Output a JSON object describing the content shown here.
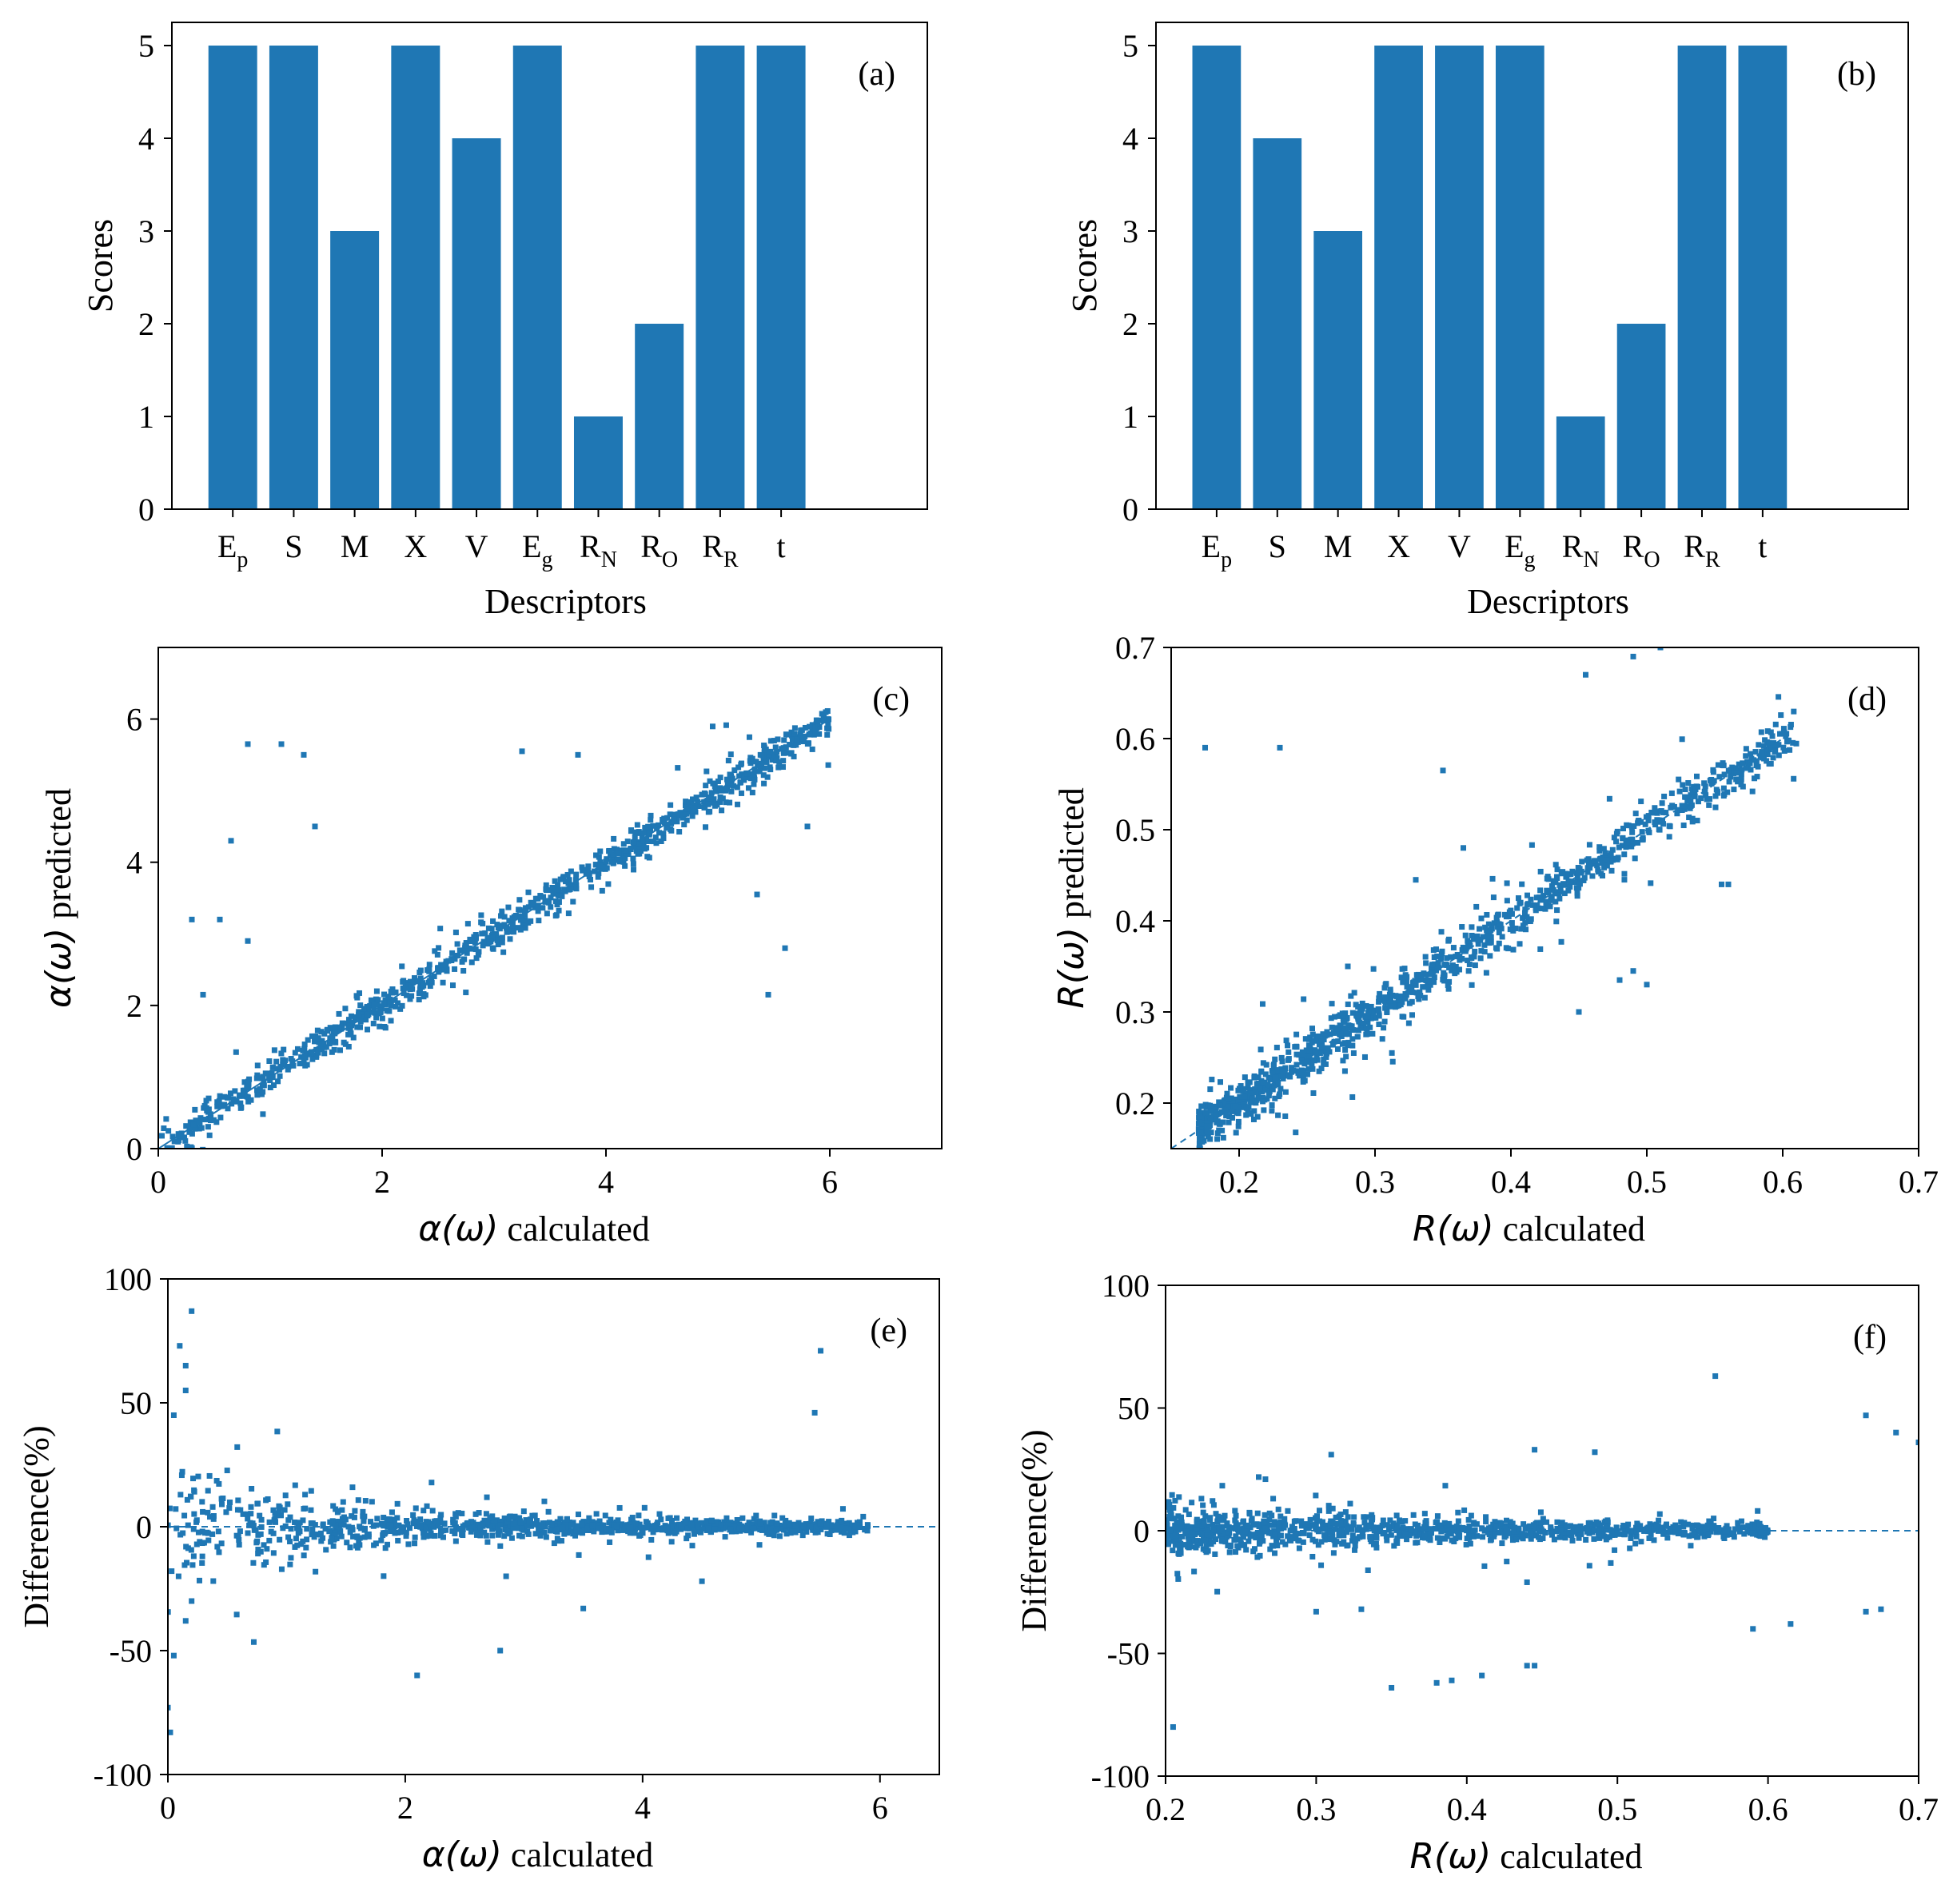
{
  "chart_data": [
    {
      "id": "a",
      "type": "bar",
      "panel_label": "(a)",
      "categories": [
        {
          "main": "E",
          "sub": "p"
        },
        {
          "main": "S",
          "sub": ""
        },
        {
          "main": "M",
          "sub": ""
        },
        {
          "main": "X",
          "sub": ""
        },
        {
          "main": "V",
          "sub": ""
        },
        {
          "main": "E",
          "sub": "g"
        },
        {
          "main": "R",
          "sub": "N"
        },
        {
          "main": "R",
          "sub": "O"
        },
        {
          "main": "R",
          "sub": "R"
        },
        {
          "main": "t",
          "sub": ""
        }
      ],
      "values": [
        5,
        5,
        3,
        5,
        4,
        5,
        1,
        2,
        5,
        5
      ],
      "xlabel": "Descriptors",
      "ylabel": "Scores",
      "ylim": [
        0,
        5.25
      ],
      "yticks": [
        "0",
        "1",
        "2",
        "3",
        "4",
        "5"
      ],
      "color": "#1f77b4"
    },
    {
      "id": "b",
      "type": "bar",
      "panel_label": "(b)",
      "categories": [
        {
          "main": "E",
          "sub": "p"
        },
        {
          "main": "S",
          "sub": ""
        },
        {
          "main": "M",
          "sub": ""
        },
        {
          "main": "X",
          "sub": ""
        },
        {
          "main": "V",
          "sub": ""
        },
        {
          "main": "E",
          "sub": "g"
        },
        {
          "main": "R",
          "sub": "N"
        },
        {
          "main": "R",
          "sub": "O"
        },
        {
          "main": "R",
          "sub": "R"
        },
        {
          "main": "t",
          "sub": ""
        }
      ],
      "values": [
        5,
        4,
        3,
        5,
        5,
        5,
        1,
        2,
        5,
        5
      ],
      "xlabel": "Descriptors",
      "ylabel": "Scores",
      "ylim": [
        0,
        5.25
      ],
      "yticks": [
        "0",
        "1",
        "2",
        "3",
        "4",
        "5"
      ],
      "color": "#1f77b4"
    },
    {
      "id": "c",
      "type": "scatter",
      "panel_label": "(c)",
      "xlabel_math": "α(ω)",
      "xlabel_text": " calculated",
      "ylabel_math": "α(ω)",
      "ylabel_text": " predicted",
      "xlim": [
        0,
        7
      ],
      "ylim": [
        0,
        7
      ],
      "xticks": [
        "0",
        "2",
        "4",
        "6"
      ],
      "yticks": [
        "0",
        "2",
        "4",
        "6"
      ],
      "reference_line": [
        [
          0,
          0
        ],
        [
          6,
          6
        ]
      ],
      "cluster": {
        "x_range": [
          0.02,
          6.0
        ],
        "spread": 0.12
      },
      "outliers": [
        [
          0.8,
          5.65
        ],
        [
          1.1,
          5.65
        ],
        [
          1.3,
          5.5
        ],
        [
          3.25,
          5.55
        ],
        [
          3.75,
          5.5
        ],
        [
          0.65,
          4.3
        ],
        [
          1.4,
          4.5
        ],
        [
          0.3,
          3.2
        ],
        [
          0.55,
          3.2
        ],
        [
          0.8,
          2.9
        ],
        [
          0.4,
          2.15
        ],
        [
          5.35,
          3.55
        ],
        [
          5.6,
          2.8
        ],
        [
          5.45,
          2.15
        ],
        [
          5.8,
          4.5
        ]
      ]
    },
    {
      "id": "d",
      "type": "scatter",
      "panel_label": "(d)",
      "xlabel_math": "R(ω)",
      "xlabel_text": " calculated",
      "ylabel_math": "R(ω)",
      "ylabel_text": " predicted",
      "xlim": [
        0.15,
        0.7
      ],
      "ylim": [
        0.15,
        0.7
      ],
      "xticks": [
        "0.2",
        "0.3",
        "0.4",
        "0.5",
        "0.6",
        "0.7"
      ],
      "yticks": [
        "0.2",
        "0.3",
        "0.4",
        "0.5",
        "0.6",
        "0.7"
      ],
      "reference_line": [
        [
          0.15,
          0.15
        ],
        [
          0.6,
          0.6
        ]
      ],
      "cluster": {
        "x_range": [
          0.17,
          0.61
        ],
        "spread": 0.012
      },
      "outliers": [
        [
          0.175,
          0.59
        ],
        [
          0.23,
          0.59
        ],
        [
          0.35,
          0.565
        ],
        [
          0.455,
          0.67
        ],
        [
          0.49,
          0.69
        ],
        [
          0.51,
          0.7
        ],
        [
          0.365,
          0.48
        ],
        [
          0.33,
          0.445
        ],
        [
          0.45,
          0.3
        ],
        [
          0.49,
          0.345
        ],
        [
          0.5,
          0.33
        ],
        [
          0.48,
          0.335
        ],
        [
          0.555,
          0.44
        ],
        [
          0.56,
          0.44
        ],
        [
          0.28,
          0.35
        ]
      ]
    },
    {
      "id": "e",
      "type": "scatter",
      "panel_label": "(e)",
      "xlabel_math": "α(ω)",
      "xlabel_text": " calculated",
      "ylabel": "Difference(%)",
      "xlim": [
        0,
        6.5
      ],
      "ylim": [
        -100,
        100
      ],
      "xticks": [
        "0",
        "2",
        "4",
        "6"
      ],
      "yticks": [
        "-100",
        "-50",
        "0",
        "50",
        "100"
      ],
      "reference_line": [
        [
          0,
          0
        ],
        [
          6.5,
          0
        ]
      ],
      "cluster": {
        "x_range": [
          0.0,
          5.9
        ]
      },
      "outliers": [
        [
          0.2,
          87
        ],
        [
          0.1,
          73
        ],
        [
          0.15,
          65
        ],
        [
          0.05,
          45
        ],
        [
          0.15,
          55
        ],
        [
          5.5,
          71
        ],
        [
          5.45,
          46
        ],
        [
          0.0,
          -73
        ],
        [
          0.02,
          -83
        ],
        [
          0.05,
          -52
        ],
        [
          2.1,
          -60
        ],
        [
          2.8,
          -50
        ],
        [
          3.5,
          -33
        ],
        [
          4.5,
          -22
        ],
        [
          2.85,
          -20
        ],
        [
          0.15,
          -38
        ],
        [
          0.2,
          -30
        ]
      ]
    },
    {
      "id": "f",
      "type": "scatter",
      "panel_label": "(f)",
      "xlabel_math": "R(ω)",
      "xlabel_text": " calculated",
      "ylabel": "Difference(%)",
      "xlim": [
        0.2,
        0.7
      ],
      "ylim": [
        -100,
        100
      ],
      "xticks": [
        "0.2",
        "0.3",
        "0.4",
        "0.5",
        "0.6",
        "0.7"
      ],
      "yticks": [
        "-100",
        "-50",
        "0",
        "50",
        "100"
      ],
      "reference_line": [
        [
          0.2,
          0
        ],
        [
          0.7,
          0
        ]
      ],
      "cluster": {
        "x_range": [
          0.2,
          0.6
        ]
      },
      "outliers": [
        [
          0.205,
          -80
        ],
        [
          0.35,
          -64
        ],
        [
          0.38,
          -62
        ],
        [
          0.39,
          -61
        ],
        [
          0.41,
          -59
        ],
        [
          0.44,
          -55
        ],
        [
          0.445,
          -55
        ],
        [
          0.565,
          63
        ],
        [
          0.665,
          47
        ],
        [
          0.685,
          40
        ],
        [
          0.7,
          36
        ],
        [
          0.59,
          -40
        ],
        [
          0.615,
          -38
        ],
        [
          0.665,
          -33
        ],
        [
          0.675,
          -32
        ],
        [
          0.3,
          -33
        ],
        [
          0.33,
          -32
        ],
        [
          0.44,
          -21
        ],
        [
          0.445,
          33
        ],
        [
          0.485,
          32
        ],
        [
          0.31,
          31
        ]
      ]
    }
  ]
}
